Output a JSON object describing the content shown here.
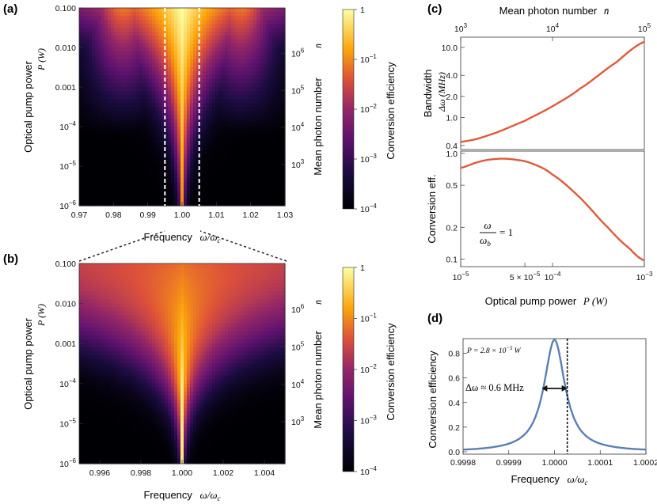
{
  "colors": {
    "curve_c": "#e05a3a",
    "curve_d": "#5b7fb5",
    "heat_low": "#000004",
    "heat_mid1": "#420a68",
    "heat_mid2": "#932667",
    "heat_mid3": "#dd513a",
    "heat_mid4": "#fca50a",
    "heat_high": "#fcffa4"
  },
  "chart_data": [
    {
      "id": "a",
      "type": "heatmap",
      "panel_label": "(a)",
      "xlabel": "Frequency",
      "xlabel_math": "ω/ω",
      "xlabel_sub": "c",
      "ylabel": "Optical pump power",
      "ylabel_math": "P (W)",
      "y2label": "Mean photon number",
      "y2label_math": "n̄",
      "x_ticks": [
        "0.97",
        "0.98",
        "0.99",
        "1.00",
        "1.01",
        "1.02",
        "1.03"
      ],
      "x_range": [
        0.97,
        1.03
      ],
      "y_ticks": [
        "0.100",
        "0.010",
        "0.001",
        "10-4",
        "10-5",
        "10-6"
      ],
      "y_range_log10": [
        -6,
        -1
      ],
      "y2_ticks": [
        "10^6",
        "10^5",
        "10^4",
        "10^3"
      ],
      "dashed_lines_x": [
        0.995,
        1.005
      ],
      "colorbar_label": "Conversion efficiency",
      "colorbar_ticks": [
        "1",
        "10^-1",
        "10^-2",
        "10^-3",
        "10^-4"
      ]
    },
    {
      "id": "b",
      "type": "heatmap",
      "panel_label": "(b)",
      "xlabel": "Frequency",
      "xlabel_math": "ω/ω",
      "xlabel_sub": "c",
      "ylabel": "Optical pump power",
      "ylabel_math": "P (W)",
      "y2label": "Mean photon number",
      "y2label_math": "n̄",
      "x_ticks": [
        "0.996",
        "0.998",
        "1.000",
        "1.002",
        "1.004"
      ],
      "x_range": [
        0.995,
        1.005
      ],
      "y_ticks": [
        "0.100",
        "0.010",
        "0.001",
        "10-4",
        "10-5",
        "10-6"
      ],
      "y_range_log10": [
        -6,
        -1
      ],
      "y2_ticks": [
        "10^6",
        "10^5",
        "10^4",
        "10^3"
      ],
      "colorbar_label": "Conversion efficiency",
      "colorbar_ticks": [
        "1",
        "10^-1",
        "10^-2",
        "10^-3",
        "10^-4"
      ]
    },
    {
      "id": "c_top",
      "type": "line",
      "panel_label": "(c)",
      "x2label": "Mean photon number",
      "x2label_math": "n̄",
      "x2_ticks": [
        "10^3",
        "10^4",
        "10^5"
      ],
      "ylabel": "Bandwidth",
      "ylabel_math": "Δω (MHz)",
      "y_ticks": [
        "10.0",
        "4.0",
        "2.0",
        "1.0",
        "0.4"
      ],
      "y_tick_values": [
        10.0,
        4.0,
        2.0,
        1.0,
        0.4
      ],
      "y_range": [
        0.35,
        14
      ],
      "x_range": [
        1e-05,
        0.001
      ],
      "x": [
        1e-05,
        2e-05,
        5e-05,
        0.0001,
        0.0002,
        0.0005,
        0.001
      ],
      "y": [
        0.45,
        0.56,
        0.9,
        1.45,
        2.6,
        6.2,
        12.0
      ]
    },
    {
      "id": "c_bottom",
      "type": "line",
      "ylabel": "Conversion eff.",
      "y_ticks": [
        "1.0",
        "0.5",
        "0.2",
        "0.1"
      ],
      "y_tick_values": [
        1.0,
        0.5,
        0.2,
        0.1
      ],
      "y_range": [
        0.085,
        1.05
      ],
      "x_range": [
        1e-05,
        0.001
      ],
      "x_ticks": [
        "10^-5",
        "5×10^-5",
        "10^-4",
        "10^-3"
      ],
      "x_tick_values": [
        1e-05,
        5e-05,
        0.0001,
        0.001
      ],
      "x": [
        1e-05,
        1.5e-05,
        2e-05,
        2.8e-05,
        4e-05,
        6e-05,
        0.0001,
        0.0002,
        0.0004,
        0.0007,
        0.001
      ],
      "y": [
        0.73,
        0.82,
        0.87,
        0.89,
        0.87,
        0.8,
        0.63,
        0.38,
        0.2,
        0.125,
        0.097
      ],
      "annotation_num": "ω",
      "annotation_den": "ω",
      "annotation_den_sub": "b",
      "annotation_eq": "= 1",
      "xlabel": "Optical pump power",
      "xlabel_math": "P (W)"
    },
    {
      "id": "d",
      "type": "line",
      "panel_label": "(d)",
      "xlabel": "Frequency",
      "xlabel_math": "ω/ω",
      "xlabel_sub": "c",
      "ylabel": "Conversion efficiency",
      "x_range": [
        0.9998,
        1.0002
      ],
      "x_ticks": [
        "0.9998",
        "0.9999",
        "1.0000",
        "1.0001",
        "1.0002"
      ],
      "x_tick_values": [
        0.9998,
        0.9999,
        1.0,
        1.0001,
        1.0002
      ],
      "y_range": [
        0,
        0.9
      ],
      "y_ticks": [
        "0.0",
        "0.2",
        "0.4",
        "0.6",
        "0.8"
      ],
      "y_tick_values": [
        0,
        0.2,
        0.4,
        0.6,
        0.8
      ],
      "peak_x": 1.0,
      "peak_y": 0.91,
      "half_width": 2.8e-05,
      "dashed_x": 1.000028,
      "power_note": "P = 2.8 × 10",
      "power_note_exp": "−5",
      "power_note_unit": "W",
      "bandwidth_note": "Δω ≈ 0.6 MHz"
    }
  ]
}
